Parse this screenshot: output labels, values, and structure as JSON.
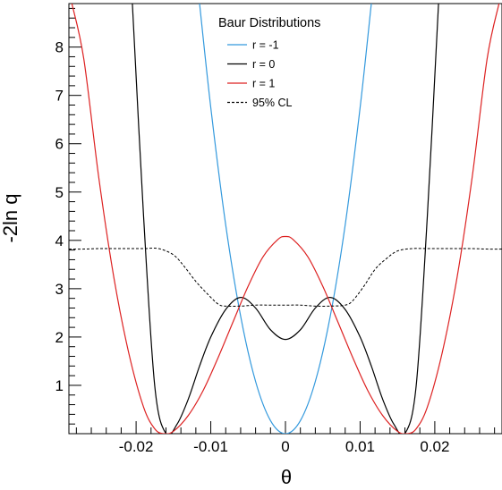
{
  "chart_data": {
    "type": "line",
    "title": "",
    "xlabel": "θ",
    "ylabel": "-2ln q",
    "xlim": [
      -0.029,
      0.029
    ],
    "ylim": [
      0,
      8.9
    ],
    "x_ticks": [
      -0.02,
      -0.01,
      0,
      0.01,
      0.02
    ],
    "x_tick_labels": [
      "-0.02",
      "-0.01",
      "0",
      "0.01",
      "0.02"
    ],
    "y_ticks": [
      1,
      2,
      3,
      4,
      5,
      6,
      7,
      8
    ],
    "y_tick_labels": [
      "1",
      "2",
      "3",
      "4",
      "5",
      "6",
      "7",
      "8"
    ],
    "grid": false,
    "legend": {
      "title": "Baur Distributions",
      "placement": "top-center",
      "entries": [
        "r = -1",
        "r =  0",
        "r =  1",
        "95% CL"
      ]
    },
    "series": [
      {
        "name": "r = -1",
        "color": "#3399dd",
        "style": "solid",
        "x": [
          -0.0115,
          -0.01,
          -0.008,
          -0.006,
          -0.004,
          -0.002,
          0,
          0.002,
          0.004,
          0.006,
          0.008,
          0.01,
          0.0115
        ],
        "y": [
          8.9,
          6.75,
          4.32,
          2.43,
          1.08,
          0.27,
          0,
          0.27,
          1.08,
          2.43,
          4.32,
          6.75,
          8.9
        ]
      },
      {
        "name": "r =  0",
        "color": "#000000",
        "style": "solid",
        "x": [
          -0.0205,
          -0.019,
          -0.0175,
          -0.016,
          -0.0145,
          -0.013,
          -0.0115,
          -0.01,
          -0.008,
          -0.006,
          -0.004,
          -0.002,
          0,
          0.002,
          0.004,
          0.006,
          0.008,
          0.01,
          0.0115,
          0.013,
          0.0145,
          0.016,
          0.0175,
          0.019,
          0.0205
        ],
        "y": [
          8.9,
          4.5,
          0.98,
          0,
          0.2,
          0.72,
          1.4,
          2.0,
          2.57,
          2.82,
          2.6,
          2.15,
          1.95,
          2.15,
          2.6,
          2.82,
          2.57,
          2.0,
          1.4,
          0.72,
          0.2,
          0,
          0.98,
          4.5,
          8.9
        ]
      },
      {
        "name": "r =  1",
        "color": "#dd2222",
        "style": "solid",
        "x": [
          -0.0286,
          -0.027,
          -0.025,
          -0.023,
          -0.021,
          -0.019,
          -0.0175,
          -0.0163,
          -0.015,
          -0.013,
          -0.011,
          -0.009,
          -0.007,
          -0.005,
          -0.003,
          -0.001,
          0,
          0.001,
          0.003,
          0.005,
          0.007,
          0.009,
          0.011,
          0.013,
          0.015,
          0.0163,
          0.0175,
          0.019,
          0.021,
          0.023,
          0.025,
          0.027,
          0.0286
        ],
        "y": [
          8.9,
          7.75,
          5.3,
          3.25,
          1.68,
          0.55,
          0.1,
          0,
          0.05,
          0.38,
          0.9,
          1.58,
          2.32,
          3.05,
          3.66,
          4.02,
          4.08,
          4.02,
          3.66,
          3.05,
          2.32,
          1.58,
          0.9,
          0.38,
          0.05,
          0,
          0.1,
          0.55,
          1.68,
          3.25,
          5.3,
          7.75,
          8.9
        ]
      },
      {
        "name": "95% CL",
        "color": "#000000",
        "style": "dashed",
        "x": [
          -0.029,
          -0.027,
          -0.025,
          -0.023,
          -0.021,
          -0.019,
          -0.017,
          -0.015,
          -0.0135,
          -0.012,
          -0.0105,
          -0.009,
          -0.008,
          -0.006,
          -0.004,
          -0.002,
          0,
          0.002,
          0.004,
          0.006,
          0.008,
          0.009,
          0.0105,
          0.012,
          0.0135,
          0.015,
          0.017,
          0.019,
          0.021,
          0.023,
          0.025,
          0.027,
          0.029
        ],
        "y": [
          3.82,
          3.82,
          3.83,
          3.83,
          3.83,
          3.83,
          3.83,
          3.7,
          3.45,
          3.15,
          2.9,
          2.68,
          2.64,
          2.64,
          2.66,
          2.66,
          2.66,
          2.66,
          2.64,
          2.64,
          2.66,
          2.75,
          3.05,
          3.4,
          3.62,
          3.78,
          3.83,
          3.83,
          3.83,
          3.83,
          3.83,
          3.82,
          3.82
        ]
      }
    ]
  }
}
